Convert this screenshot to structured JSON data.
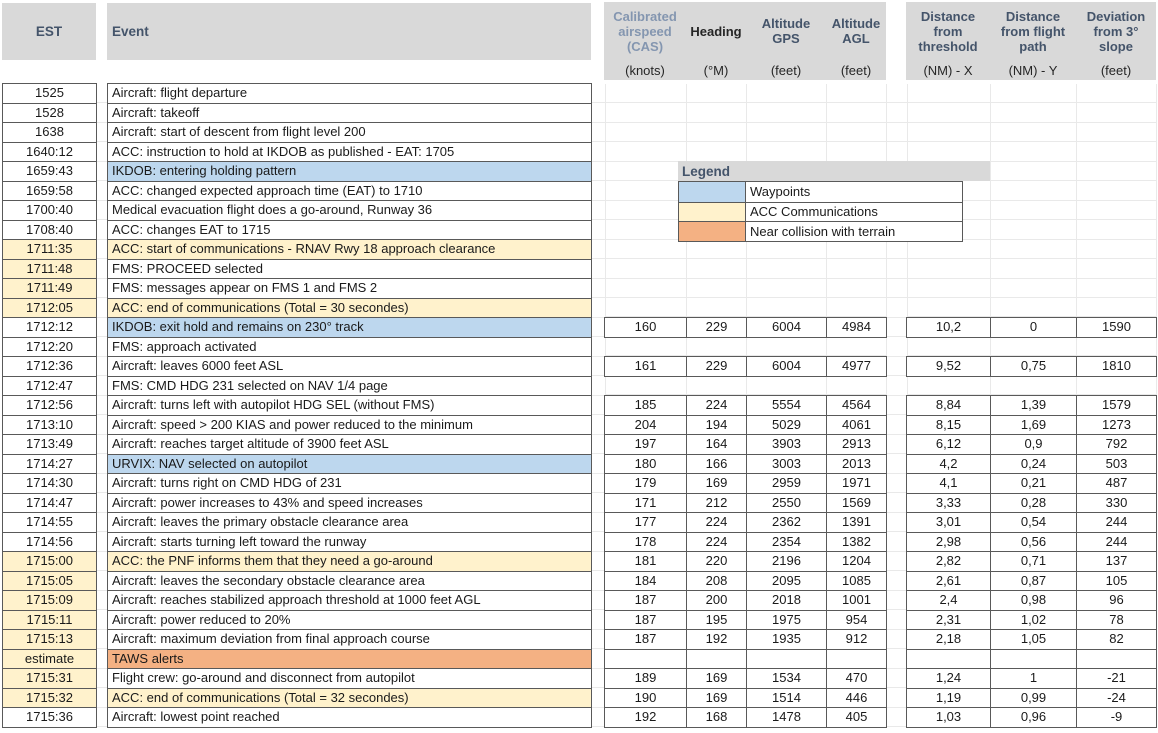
{
  "header": {
    "est": "EST",
    "event": "Event",
    "left_group": [
      {
        "title": "Calibrated airspeed (CAS)",
        "unit": "(knots)",
        "style": "muted"
      },
      {
        "title": "Heading",
        "unit": "(°M)",
        "style": "dark"
      },
      {
        "title": "Altitude GPS",
        "unit": "(feet)",
        "style": ""
      },
      {
        "title": "Altitude AGL",
        "unit": "(feet)",
        "style": ""
      }
    ],
    "right_group": [
      {
        "title": "Distance from threshold",
        "unit": "(NM) - X"
      },
      {
        "title": "Distance from flight path",
        "unit": "(NM) - Y"
      },
      {
        "title": "Deviation from 3° slope",
        "unit": "(feet)"
      }
    ]
  },
  "legend": {
    "title": "Legend",
    "items": [
      {
        "label": "Waypoints",
        "color": "#bdd7ee"
      },
      {
        "label": "ACC Communications",
        "color": "#fff2cc"
      },
      {
        "label": "Near collision with terrain",
        "color": "#f4b183"
      }
    ]
  },
  "colors": {
    "white": "#ffffff",
    "waypoint": "#bdd7ee",
    "comm": "#fff2cc",
    "alert": "#f4b183",
    "header_bg": "#d9d9d9",
    "header_text": "#44546a",
    "border": "#595959"
  },
  "rows": [
    {
      "est": "1525",
      "event": "Aircraft: flight departure",
      "est_bg": "white",
      "event_bg": "white",
      "has_data": false
    },
    {
      "est": "1528",
      "event": "Aircraft: takeoff",
      "est_bg": "white",
      "event_bg": "white",
      "has_data": false
    },
    {
      "est": "1638",
      "event": "Aircraft: start of descent from flight level 200",
      "est_bg": "white",
      "event_bg": "white",
      "has_data": false
    },
    {
      "est": "1640:12",
      "event": "ACC: instruction to hold at IKDOB as published - EAT: 1705",
      "est_bg": "white",
      "event_bg": "white",
      "has_data": false
    },
    {
      "est": "1659:43",
      "event": "IKDOB: entering holding pattern",
      "est_bg": "white",
      "event_bg": "waypoint",
      "has_data": false
    },
    {
      "est": "1659:58",
      "event": "ACC: changed expected approach time (EAT) to 1710",
      "est_bg": "white",
      "event_bg": "white",
      "has_data": false
    },
    {
      "est": "1700:40",
      "event": "Medical evacuation flight does a go-around, Runway 36",
      "est_bg": "white",
      "event_bg": "white",
      "has_data": false
    },
    {
      "est": "1708:40",
      "event": "ACC: changes EAT to 1715",
      "est_bg": "white",
      "event_bg": "white",
      "has_data": false
    },
    {
      "est": "1711:35",
      "event": "ACC: start of communications -  RNAV Rwy 18 approach clearance",
      "est_bg": "comm",
      "event_bg": "comm",
      "has_data": false
    },
    {
      "est": "1711:48",
      "event": "FMS: PROCEED selected",
      "est_bg": "comm",
      "event_bg": "white",
      "has_data": false
    },
    {
      "est": "1711:49",
      "event": "FMS: messages appear on FMS 1 and FMS 2",
      "est_bg": "comm",
      "event_bg": "white",
      "has_data": false
    },
    {
      "est": "1712:05",
      "event": "ACC: end of communications (Total = 30 secondes)",
      "est_bg": "comm",
      "event_bg": "comm",
      "has_data": false
    },
    {
      "est": "1712:12",
      "event": "IKDOB: exit hold and remains on 230° track",
      "est_bg": "white",
      "event_bg": "waypoint",
      "has_data": true,
      "cas": "160",
      "hdg": "229",
      "alt_gps": "6004",
      "alt_agl": "4984",
      "dist_x": "10,2",
      "dist_y": "0",
      "dev": "1590"
    },
    {
      "est": "1712:20",
      "event": "FMS: approach activated",
      "est_bg": "white",
      "event_bg": "white",
      "has_data": false
    },
    {
      "est": "1712:36",
      "event": "Aircraft: leaves 6000 feet ASL",
      "est_bg": "white",
      "event_bg": "white",
      "has_data": true,
      "cas": "161",
      "hdg": "229",
      "alt_gps": "6004",
      "alt_agl": "4977",
      "dist_x": "9,52",
      "dist_y": "0,75",
      "dev": "1810"
    },
    {
      "est": "1712:47",
      "event": "FMS: CMD HDG 231 selected on NAV 1/4 page",
      "est_bg": "white",
      "event_bg": "white",
      "has_data": false
    },
    {
      "est": "1712:56",
      "event": "Aircraft: turns left with autopilot HDG SEL (without FMS)",
      "est_bg": "white",
      "event_bg": "white",
      "has_data": true,
      "cas": "185",
      "hdg": "224",
      "alt_gps": "5554",
      "alt_agl": "4564",
      "dist_x": "8,84",
      "dist_y": "1,39",
      "dev": "1579"
    },
    {
      "est": "1713:10",
      "event": "Aircraft: speed > 200 KIAS and power reduced to the minimum",
      "est_bg": "white",
      "event_bg": "white",
      "has_data": true,
      "cas": "204",
      "hdg": "194",
      "alt_gps": "5029",
      "alt_agl": "4061",
      "dist_x": "8,15",
      "dist_y": "1,69",
      "dev": "1273"
    },
    {
      "est": "1713:49",
      "event": "Aircraft: reaches target altitude of 3900 feet ASL",
      "est_bg": "white",
      "event_bg": "white",
      "has_data": true,
      "cas": "197",
      "hdg": "164",
      "alt_gps": "3903",
      "alt_agl": "2913",
      "dist_x": "6,12",
      "dist_y": "0,9",
      "dev": "792"
    },
    {
      "est": "1714:27",
      "event": "URVIX: NAV selected on autopilot",
      "est_bg": "white",
      "event_bg": "waypoint",
      "has_data": true,
      "cas": "180",
      "hdg": "166",
      "alt_gps": "3003",
      "alt_agl": "2013",
      "dist_x": "4,2",
      "dist_y": "0,24",
      "dev": "503"
    },
    {
      "est": "1714:30",
      "event": "Aircraft: turns right on CMD HDG of 231",
      "est_bg": "white",
      "event_bg": "white",
      "has_data": true,
      "cas": "179",
      "hdg": "169",
      "alt_gps": "2959",
      "alt_agl": "1971",
      "dist_x": "4,1",
      "dist_y": "0,21",
      "dev": "487"
    },
    {
      "est": "1714:47",
      "event": "Aircraft: power increases to 43% and speed increases",
      "est_bg": "white",
      "event_bg": "white",
      "has_data": true,
      "cas": "171",
      "hdg": "212",
      "alt_gps": "2550",
      "alt_agl": "1569",
      "dist_x": "3,33",
      "dist_y": "0,28",
      "dev": "330"
    },
    {
      "est": "1714:55",
      "event": "Aircraft: leaves the primary obstacle clearance area",
      "est_bg": "white",
      "event_bg": "white",
      "has_data": true,
      "cas": "177",
      "hdg": "224",
      "alt_gps": "2362",
      "alt_agl": "1391",
      "dist_x": "3,01",
      "dist_y": "0,54",
      "dev": "244"
    },
    {
      "est": "1714:56",
      "event": "Aircraft: starts turning left toward the runway",
      "est_bg": "white",
      "event_bg": "white",
      "has_data": true,
      "cas": "178",
      "hdg": "224",
      "alt_gps": "2354",
      "alt_agl": "1382",
      "dist_x": "2,98",
      "dist_y": "0,56",
      "dev": "244"
    },
    {
      "est": "1715:00",
      "event": "ACC: the PNF informs them that they need a go-around",
      "est_bg": "comm",
      "event_bg": "comm",
      "has_data": true,
      "cas": "181",
      "hdg": "220",
      "alt_gps": "2196",
      "alt_agl": "1204",
      "dist_x": "2,82",
      "dist_y": "0,71",
      "dev": "137"
    },
    {
      "est": "1715:05",
      "event": "Aircraft: leaves the secondary obstacle clearance area",
      "est_bg": "comm",
      "event_bg": "white",
      "has_data": true,
      "cas": "184",
      "hdg": "208",
      "alt_gps": "2095",
      "alt_agl": "1085",
      "dist_x": "2,61",
      "dist_y": "0,87",
      "dev": "105"
    },
    {
      "est": "1715:09",
      "event": "Aircraft: reaches stabilized approach threshold at 1000 feet AGL",
      "est_bg": "comm",
      "event_bg": "white",
      "has_data": true,
      "cas": "187",
      "hdg": "200",
      "alt_gps": "2018",
      "alt_agl": "1001",
      "dist_x": "2,4",
      "dist_y": "0,98",
      "dev": "96"
    },
    {
      "est": "1715:11",
      "event": "Aircraft: power reduced to 20%",
      "est_bg": "comm",
      "event_bg": "white",
      "has_data": true,
      "cas": "187",
      "hdg": "195",
      "alt_gps": "1975",
      "alt_agl": "954",
      "dist_x": "2,31",
      "dist_y": "1,02",
      "dev": "78"
    },
    {
      "est": "1715:13",
      "event": "Aircraft: maximum deviation from final approach course",
      "est_bg": "comm",
      "event_bg": "white",
      "has_data": true,
      "cas": "187",
      "hdg": "192",
      "alt_gps": "1935",
      "alt_agl": "912",
      "dist_x": "2,18",
      "dist_y": "1,05",
      "dev": "82"
    },
    {
      "est": "estimate",
      "event": "TAWS alerts",
      "est_bg": "comm",
      "event_bg": "alert",
      "has_data": true,
      "cas": "",
      "hdg": "",
      "alt_gps": "",
      "alt_agl": "",
      "dist_x": "",
      "dist_y": "",
      "dev": ""
    },
    {
      "est": "1715:31",
      "event": "Flight crew: go-around and disconnect from autopilot",
      "est_bg": "comm",
      "event_bg": "white",
      "has_data": true,
      "cas": "189",
      "hdg": "169",
      "alt_gps": "1534",
      "alt_agl": "470",
      "dist_x": "1,24",
      "dist_y": "1",
      "dev": "-21"
    },
    {
      "est": "1715:32",
      "event": "ACC: end of communications (Total = 32 secondes)",
      "est_bg": "comm",
      "event_bg": "comm",
      "has_data": true,
      "cas": "190",
      "hdg": "169",
      "alt_gps": "1514",
      "alt_agl": "446",
      "dist_x": "1,19",
      "dist_y": "0,99",
      "dev": "-24"
    },
    {
      "est": "1715:36",
      "event": "Aircraft: lowest point reached",
      "est_bg": "white",
      "event_bg": "white",
      "has_data": true,
      "cas": "192",
      "hdg": "168",
      "alt_gps": "1478",
      "alt_agl": "405",
      "dist_x": "1,03",
      "dist_y": "0,96",
      "dev": "-9"
    }
  ]
}
